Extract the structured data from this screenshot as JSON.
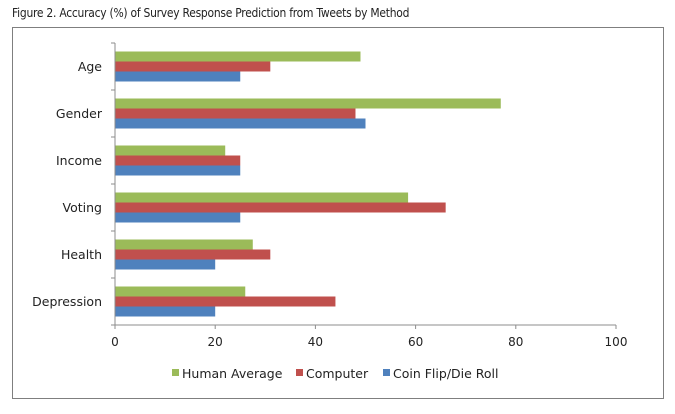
{
  "chart_data": {
    "type": "bar",
    "orientation": "horizontal",
    "title": "Figure 2. Accuracy (%) of Survey Response Prediction from Tweets by Method",
    "categories": [
      "Age",
      "Gender",
      "Income",
      "Voting",
      "Health",
      "Depression"
    ],
    "series": [
      {
        "name": "Human Average",
        "color": "#9BBB59",
        "values": [
          49,
          77,
          22,
          58.5,
          27.5,
          26
        ]
      },
      {
        "name": "Computer",
        "color": "#C0504D",
        "values": [
          31,
          48,
          25,
          66,
          31,
          44
        ]
      },
      {
        "name": "Coin Flip/Die Roll",
        "color": "#4F81BD",
        "values": [
          25,
          50,
          25,
          25,
          20,
          20
        ]
      }
    ],
    "xlabel": "",
    "ylabel": "",
    "xlim": [
      0,
      100
    ],
    "xticks": [
      "0",
      "20",
      "40",
      "60",
      "80",
      "100"
    ],
    "grid": false,
    "legend": "bottom"
  }
}
